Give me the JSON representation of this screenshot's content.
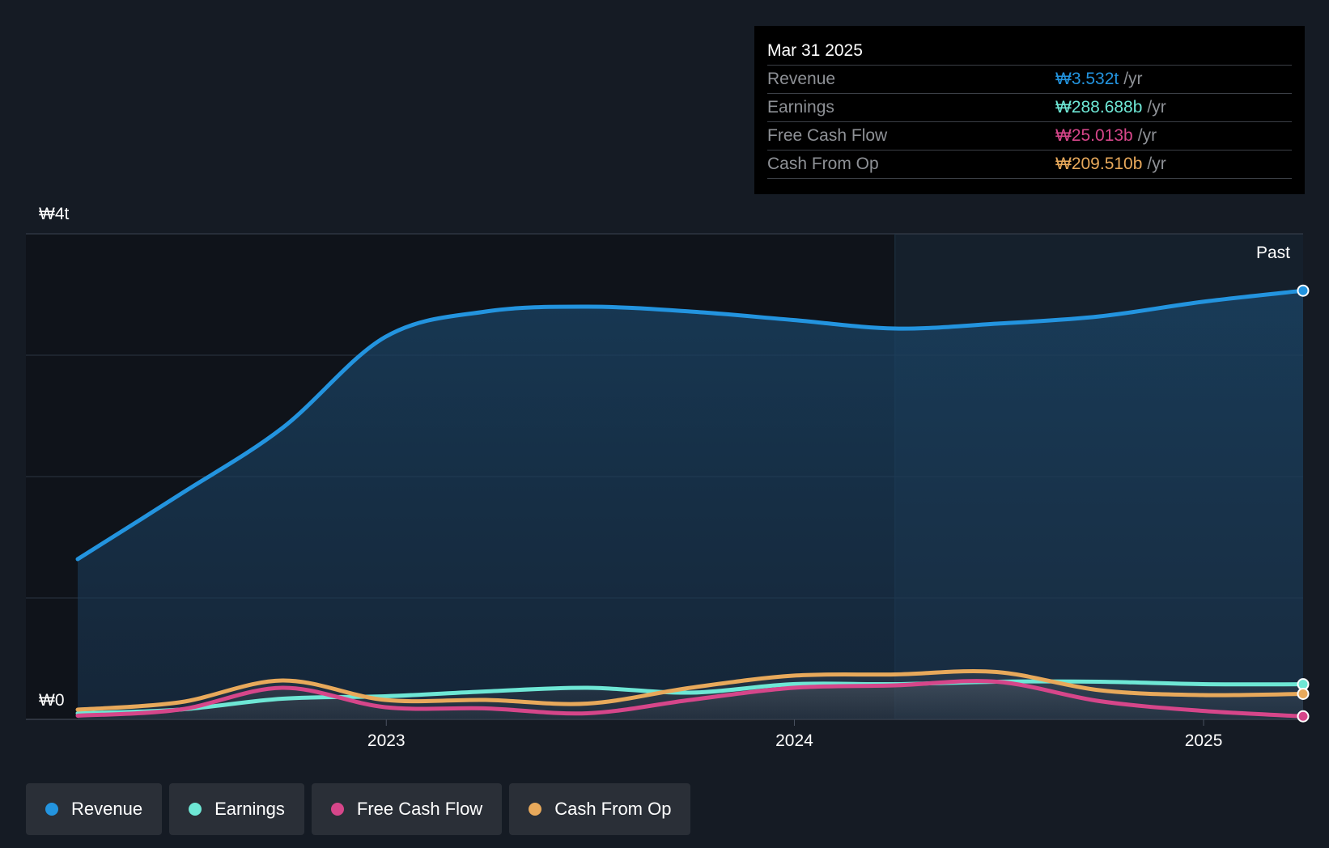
{
  "tooltip": {
    "date": "Mar 31 2025",
    "rows": [
      {
        "label": "Revenue",
        "value": "₩3.532t",
        "unit": "/yr",
        "color": "#2394df"
      },
      {
        "label": "Earnings",
        "value": "₩288.688b",
        "unit": "/yr",
        "color": "#6ee7d5"
      },
      {
        "label": "Free Cash Flow",
        "value": "₩25.013b",
        "unit": "/yr",
        "color": "#d6468a"
      },
      {
        "label": "Cash From Op",
        "value": "₩209.510b",
        "unit": "/yr",
        "color": "#e8a95b"
      }
    ]
  },
  "past_label": "Past",
  "legend": [
    {
      "label": "Revenue",
      "color": "#2394df"
    },
    {
      "label": "Earnings",
      "color": "#6ee7d5"
    },
    {
      "label": "Free Cash Flow",
      "color": "#d6468a"
    },
    {
      "label": "Cash From Op",
      "color": "#e8a95b"
    }
  ],
  "chart_data": {
    "type": "line",
    "y_top_label": "₩4t",
    "y_bottom_label": "₩0",
    "ylim": [
      0,
      4.0
    ],
    "xlim": [
      "2022-03-31",
      "2025-03-31"
    ],
    "x_ticks": [
      "2023",
      "2024",
      "2025"
    ],
    "x_tick_dates": [
      "2023-01-01",
      "2024-01-01",
      "2025-01-01"
    ],
    "past_divider_date": "2024-03-31",
    "grid": true,
    "legend_position": "bottom",
    "series": [
      {
        "name": "Revenue",
        "color": "#2394df",
        "area": true,
        "points": [
          [
            "2022-03-31",
            1.32
          ],
          [
            "2022-06-30",
            1.85
          ],
          [
            "2022-09-30",
            2.4
          ],
          [
            "2022-12-31",
            3.15
          ],
          [
            "2023-03-31",
            3.36
          ],
          [
            "2023-06-30",
            3.4
          ],
          [
            "2023-09-30",
            3.36
          ],
          [
            "2023-12-31",
            3.29
          ],
          [
            "2024-03-31",
            3.22
          ],
          [
            "2024-06-30",
            3.26
          ],
          [
            "2024-09-30",
            3.32
          ],
          [
            "2024-12-31",
            3.44
          ],
          [
            "2025-03-31",
            3.532
          ]
        ]
      },
      {
        "name": "Earnings",
        "color": "#6ee7d5",
        "points": [
          [
            "2022-03-31",
            0.05
          ],
          [
            "2022-06-30",
            0.08
          ],
          [
            "2022-09-30",
            0.17
          ],
          [
            "2022-12-31",
            0.19
          ],
          [
            "2023-03-31",
            0.23
          ],
          [
            "2023-06-30",
            0.26
          ],
          [
            "2023-09-30",
            0.22
          ],
          [
            "2023-12-31",
            0.29
          ],
          [
            "2024-03-31",
            0.29
          ],
          [
            "2024-06-30",
            0.31
          ],
          [
            "2024-09-30",
            0.31
          ],
          [
            "2024-12-31",
            0.29
          ],
          [
            "2025-03-31",
            0.289
          ]
        ]
      },
      {
        "name": "Free Cash Flow",
        "color": "#d6468a",
        "points": [
          [
            "2022-03-31",
            0.03
          ],
          [
            "2022-06-30",
            0.08
          ],
          [
            "2022-09-30",
            0.26
          ],
          [
            "2022-12-31",
            0.1
          ],
          [
            "2023-03-31",
            0.09
          ],
          [
            "2023-06-30",
            0.05
          ],
          [
            "2023-09-30",
            0.16
          ],
          [
            "2023-12-31",
            0.26
          ],
          [
            "2024-03-31",
            0.28
          ],
          [
            "2024-06-30",
            0.31
          ],
          [
            "2024-09-30",
            0.15
          ],
          [
            "2024-12-31",
            0.07
          ],
          [
            "2025-03-31",
            0.025
          ]
        ]
      },
      {
        "name": "Cash From Op",
        "color": "#e8a95b",
        "points": [
          [
            "2022-03-31",
            0.08
          ],
          [
            "2022-06-30",
            0.14
          ],
          [
            "2022-09-30",
            0.32
          ],
          [
            "2022-12-31",
            0.16
          ],
          [
            "2023-03-31",
            0.16
          ],
          [
            "2023-06-30",
            0.13
          ],
          [
            "2023-09-30",
            0.26
          ],
          [
            "2023-12-31",
            0.36
          ],
          [
            "2024-03-31",
            0.37
          ],
          [
            "2024-06-30",
            0.39
          ],
          [
            "2024-09-30",
            0.24
          ],
          [
            "2024-12-31",
            0.2
          ],
          [
            "2025-03-31",
            0.21
          ]
        ]
      }
    ]
  }
}
